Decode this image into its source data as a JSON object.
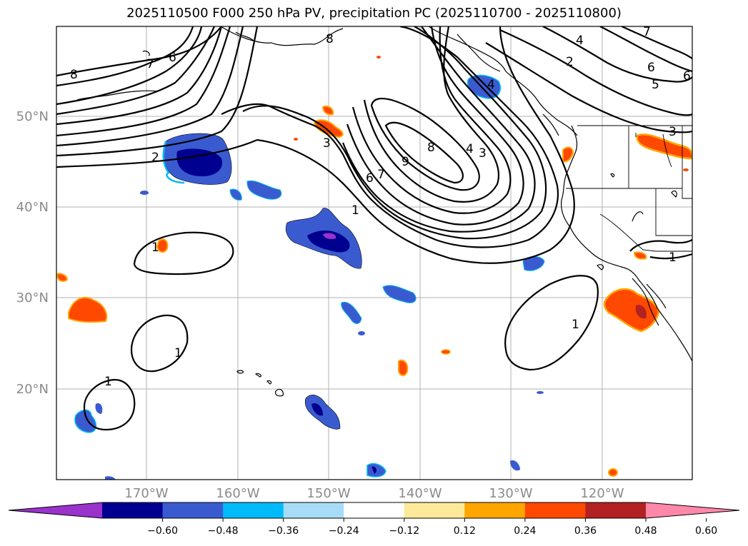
{
  "title": "2025110500 F000 250 hPa PV, precipitation PC (2025110700 - 2025110800)",
  "lat_labels": [
    "50°N",
    "40°N",
    "30°N",
    "20°N"
  ],
  "lon_labels": [
    "170°W",
    "160°W",
    "150°W",
    "140°W",
    "130°W",
    "120°W"
  ],
  "colorbar": {
    "ticks": [
      "−0.60",
      "−0.48",
      "−0.36",
      "−0.24",
      "−0.12",
      "0.12",
      "0.24",
      "0.36",
      "0.48",
      "0.60"
    ],
    "colors": [
      "#9933cc",
      "#000090",
      "#3a5bd0",
      "#00bbf9",
      "#a7dcf6",
      "#ffffff",
      "#fde99a",
      "#ffa500",
      "#ff4800",
      "#b22222",
      "#ff88aa"
    ]
  },
  "contour_labels": {
    "c8_nw": "8",
    "c7_nw": "7",
    "c6_nw": "6",
    "c2_w": "2",
    "c1_w": "1",
    "c1_sw1": "1",
    "c1_sw2": "1",
    "c8_top": "8",
    "c3_mid": "3",
    "c6_mid": "6",
    "c7_mid": "7",
    "c9_mid": "9",
    "c8_mid": "8",
    "c4_mid": "4",
    "c3_mid2": "3",
    "c1_mid": "1",
    "c4_ak": "4",
    "c4_ne": "4",
    "c2_ne": "2",
    "c7_ne": "7",
    "c6_ne": "6",
    "c5_ne": "5",
    "c6_ne2": "6",
    "c3_ne": "3",
    "c1_e": "1",
    "c1_se": "1"
  }
}
